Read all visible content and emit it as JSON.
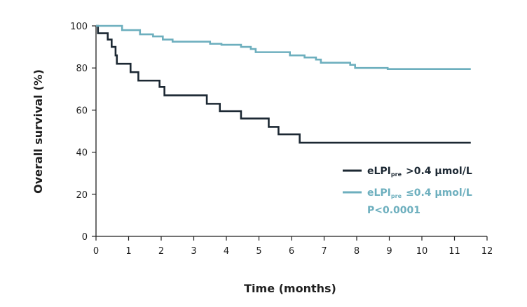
{
  "chart_data": {
    "type": "line",
    "step": true,
    "xlabel": "Time (months)",
    "ylabel": "Overall survival (%)",
    "xlim": [
      0,
      12
    ],
    "ylim": [
      0,
      100
    ],
    "xticks": [
      0,
      1,
      2,
      3,
      4,
      5,
      6,
      7,
      8,
      9,
      10,
      11,
      12
    ],
    "yticks": [
      0,
      20,
      40,
      60,
      80,
      100
    ],
    "grid": false,
    "legend_position": "lower-right",
    "annotation": "P<0.0001",
    "series": [
      {
        "name_main": "eLPI",
        "name_sub": "pre",
        "name_rest": ">0.4 µmol/L",
        "color": "#1c2833",
        "points": [
          [
            0,
            100
          ],
          [
            0.06,
            96.5
          ],
          [
            0.36,
            93.5
          ],
          [
            0.48,
            90
          ],
          [
            0.6,
            86
          ],
          [
            0.64,
            82
          ],
          [
            1.06,
            78
          ],
          [
            1.3,
            74
          ],
          [
            1.95,
            71
          ],
          [
            2.1,
            67
          ],
          [
            3.4,
            63
          ],
          [
            3.8,
            59.5
          ],
          [
            4.45,
            56
          ],
          [
            5.3,
            52
          ],
          [
            5.6,
            48.5
          ],
          [
            6.25,
            44.5
          ],
          [
            11.5,
            44.5
          ]
        ]
      },
      {
        "name_main": "eLPI",
        "name_sub": "pre",
        "name_rest": "≤0.4 µmol/L",
        "color": "#6dafbe",
        "points": [
          [
            0,
            100
          ],
          [
            0.8,
            98
          ],
          [
            1.35,
            96
          ],
          [
            1.75,
            95
          ],
          [
            2.05,
            93.5
          ],
          [
            2.35,
            92.5
          ],
          [
            3.5,
            91.5
          ],
          [
            3.85,
            91
          ],
          [
            4.45,
            90
          ],
          [
            4.75,
            89
          ],
          [
            4.9,
            87.5
          ],
          [
            5.95,
            86
          ],
          [
            6.4,
            85
          ],
          [
            6.75,
            84
          ],
          [
            6.9,
            82.5
          ],
          [
            7.8,
            81.5
          ],
          [
            7.95,
            80
          ],
          [
            8.95,
            79.5
          ],
          [
            11.5,
            79.5
          ]
        ]
      }
    ]
  }
}
